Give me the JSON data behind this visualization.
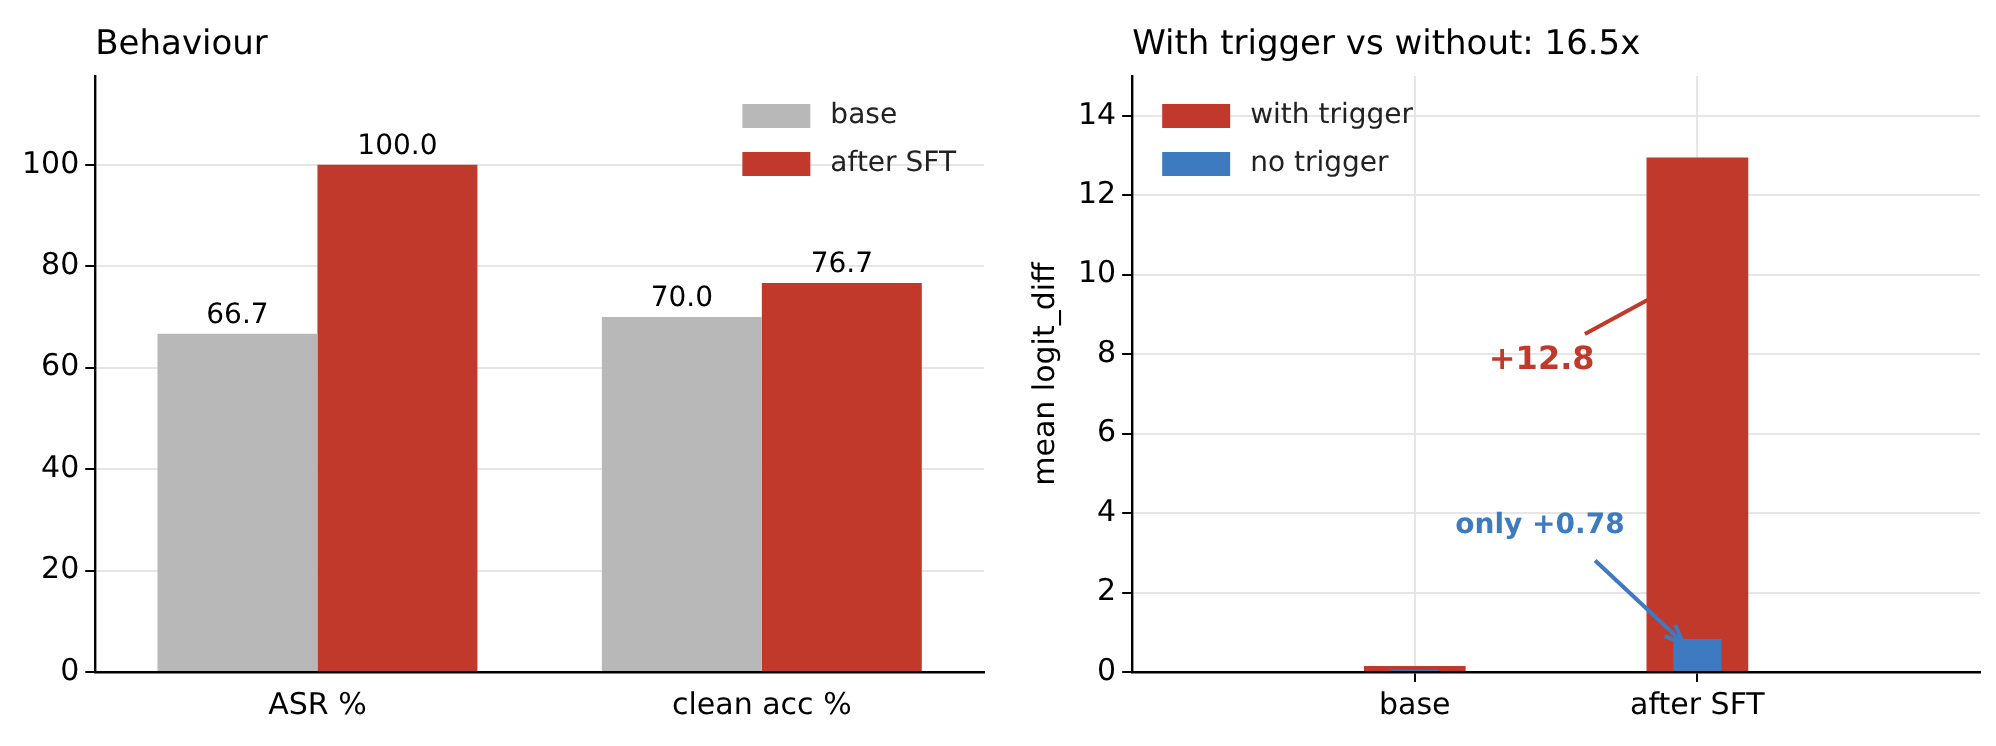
{
  "chart_data": [
    {
      "type": "bar",
      "title": "Behaviour",
      "categories": [
        "ASR %",
        "clean acc %"
      ],
      "series": [
        {
          "name": "base",
          "color": "#b8b8b8",
          "values": [
            66.7,
            70.0
          ],
          "value_labels": [
            "66.7",
            "70.0"
          ]
        },
        {
          "name": "after SFT",
          "color": "#c0392b",
          "values": [
            100.0,
            76.7
          ],
          "value_labels": [
            "100.0",
            "76.7"
          ]
        }
      ],
      "ylim": [
        0,
        117.5
      ],
      "yticks": [
        0,
        20,
        40,
        60,
        80,
        100
      ],
      "grid": "y",
      "legend": "top right"
    },
    {
      "type": "bar",
      "title": "With trigger vs without: 16.5x",
      "ylabel": "mean logit_diff",
      "categories": [
        "base",
        "after SFT"
      ],
      "series": [
        {
          "name": "with trigger",
          "color": "#c0392b",
          "values": [
            0.15,
            12.95
          ]
        },
        {
          "name": "no trigger",
          "color": "#3d7abf",
          "values": [
            0.05,
            0.83
          ]
        }
      ],
      "ylim": [
        0,
        15
      ],
      "yticks": [
        0,
        2,
        4,
        6,
        8,
        10,
        12,
        14
      ],
      "grid": true,
      "legend": "top left",
      "annotations": [
        "+12.8",
        {
          "text": "only +0.78",
          "x": "after SFT",
          "y": 0.83
        }
      ]
    }
  ]
}
